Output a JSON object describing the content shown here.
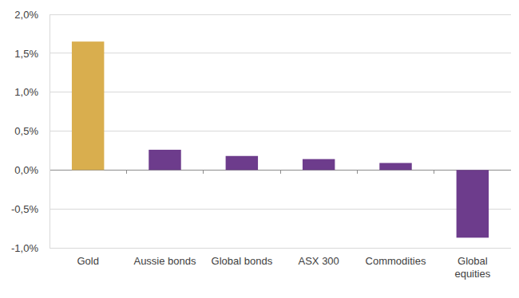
{
  "chart_data": {
    "type": "bar",
    "categories": [
      "Gold",
      "Aussie bonds",
      "Global bonds",
      "ASX 300",
      "Commodities",
      "Global equities"
    ],
    "values": [
      1.65,
      0.26,
      0.18,
      0.14,
      0.09,
      -0.87
    ],
    "colors": [
      "#d9ae4e",
      "#6d3c8c",
      "#6d3c8c",
      "#6d3c8c",
      "#6d3c8c",
      "#6d3c8c"
    ],
    "ylim": [
      -1,
      2
    ],
    "yticks": [
      {
        "value": -1,
        "label": "-1,0%"
      },
      {
        "value": -0.5,
        "label": "-0,5%"
      },
      {
        "value": 0,
        "label": "0,0%"
      },
      {
        "value": 0.5,
        "label": "0,5%"
      },
      {
        "value": 1,
        "label": "1,0%"
      },
      {
        "value": 1.5,
        "label": "1,5%"
      },
      {
        "value": 2,
        "label": "2,0%"
      }
    ],
    "grid": true
  }
}
